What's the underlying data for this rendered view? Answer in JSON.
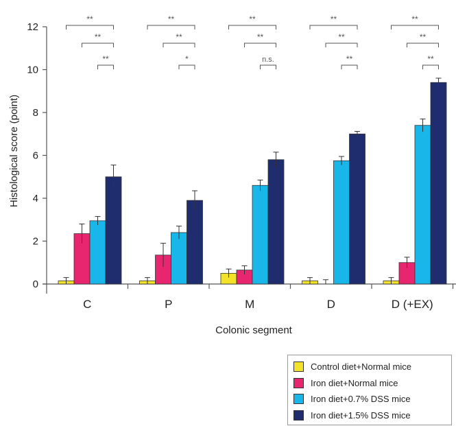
{
  "chart_data": {
    "type": "bar",
    "xlabel": "Colonic segment",
    "ylabel": "Histological score (point)",
    "ylim": [
      0,
      12
    ],
    "yticks": [
      0,
      2,
      4,
      6,
      8,
      10,
      12
    ],
    "categories": [
      "C",
      "P",
      "M",
      "D",
      "D (+EX)"
    ],
    "series": [
      {
        "name": "Control diet+Normal mice",
        "color": "#f2e22a",
        "values": [
          0.15,
          0.15,
          0.5,
          0.15,
          0.15
        ],
        "errors": [
          0.15,
          0.15,
          0.2,
          0.15,
          0.15
        ]
      },
      {
        "name": "Iron diet+Normal mice",
        "color": "#e8256f",
        "values": [
          2.35,
          1.35,
          0.65,
          0.0,
          1.0
        ],
        "errors": [
          0.45,
          0.55,
          0.2,
          0.2,
          0.25
        ]
      },
      {
        "name": "Iron diet+0.7% DSS mice",
        "color": "#19b6ea",
        "values": [
          2.95,
          2.4,
          4.6,
          5.75,
          7.4
        ],
        "errors": [
          0.2,
          0.3,
          0.25,
          0.2,
          0.3
        ]
      },
      {
        "name": "Iron diet+1.5% DSS mice",
        "color": "#1f2d6e",
        "values": [
          5.0,
          3.9,
          5.8,
          7.0,
          9.4
        ],
        "errors": [
          0.55,
          0.45,
          0.35,
          0.12,
          0.2
        ]
      }
    ],
    "significance": [
      [
        "**",
        "**",
        "**"
      ],
      [
        "**",
        "**",
        "*"
      ],
      [
        "**",
        "**",
        "n.s."
      ],
      [
        "**",
        "**",
        "**"
      ],
      [
        "**",
        "**",
        "**"
      ]
    ],
    "legend_position": "bottom-right",
    "grid": false
  }
}
